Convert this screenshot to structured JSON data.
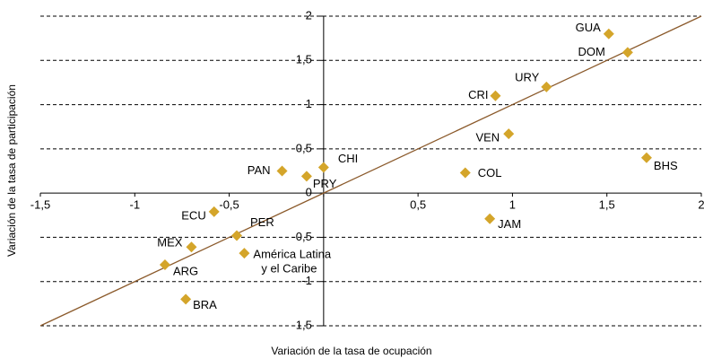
{
  "chart_data": {
    "type": "scatter",
    "xlabel": "Variación de la tasa de ocupación",
    "ylabel": "Variación de la tasa de participación",
    "labels": [
      "GUA",
      "DOM",
      "URY",
      "CRI",
      "VEN",
      "BHS",
      "COL",
      "JAM",
      "CHI",
      "PAN",
      "PRY",
      "ECU",
      "PER",
      "MEX",
      [
        "América Latina",
        "y el Caribe"
      ],
      "ARG",
      "BRA"
    ],
    "x": [
      1.51,
      1.61,
      1.18,
      0.91,
      0.98,
      1.71,
      0.75,
      0.88,
      0.0,
      -0.22,
      -0.09,
      -0.58,
      -0.46,
      -0.7,
      -0.42,
      -0.84,
      -0.73
    ],
    "y": [
      1.8,
      1.59,
      1.2,
      1.1,
      0.67,
      0.4,
      0.23,
      -0.29,
      0.29,
      0.25,
      0.19,
      -0.21,
      -0.48,
      -0.61,
      -0.68,
      -0.81,
      -1.2
    ],
    "color": "#d4a52a",
    "trend_line": {
      "x": [
        -1.5,
        2
      ],
      "y": [
        -1.5,
        2
      ],
      "color": "#8b5a2b"
    },
    "xlim": [
      -1.5,
      2
    ],
    "ylim": [
      -1.5,
      2
    ],
    "xticks": [
      {
        "value": -1.5,
        "label": "-1,5"
      },
      -1,
      {
        "value": -0.5,
        "label": "-0,5"
      },
      0,
      {
        "value": 0.5,
        "label": "0,5"
      },
      1,
      {
        "value": 1.5,
        "label": "1,5"
      },
      2
    ],
    "yticks": [
      {
        "value": -1.5,
        "label": "-1,5"
      },
      -1,
      {
        "value": -0.5,
        "label": "-0,5"
      },
      0,
      {
        "value": 0.5,
        "label": "0,5"
      },
      1,
      {
        "value": 1.5,
        "label": "1,5"
      },
      2
    ],
    "grid": true
  }
}
